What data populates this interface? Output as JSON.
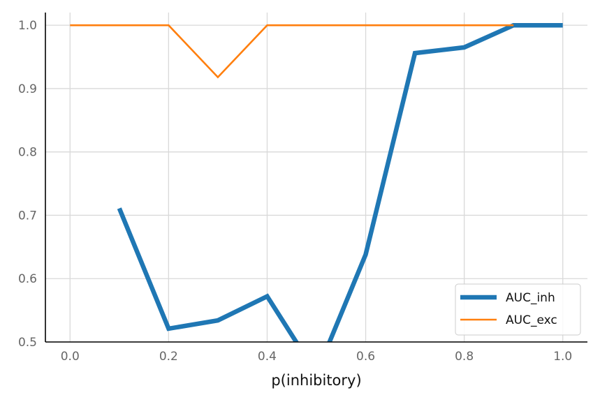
{
  "chart_data": {
    "type": "line",
    "xlabel": "p(inhibitory)",
    "ylabel": "",
    "xlim": [
      -0.05,
      1.05
    ],
    "ylim": [
      0.5,
      1.02
    ],
    "x_ticks": [
      "0.0",
      "0.2",
      "0.4",
      "0.6",
      "0.8",
      "1.0"
    ],
    "y_ticks": [
      "0.5",
      "0.6",
      "0.7",
      "0.8",
      "0.9",
      "1.0"
    ],
    "grid": true,
    "legend_position": "lower-right",
    "series": [
      {
        "name": "AUC_inh",
        "color": "#1f77b4",
        "x": [
          0.1,
          0.2,
          0.3,
          0.4,
          0.5,
          0.6,
          0.7,
          0.8,
          0.9,
          1.0
        ],
        "y": [
          0.711,
          0.521,
          0.534,
          0.572,
          0.45,
          0.638,
          0.956,
          0.965,
          1.0,
          1.0
        ]
      },
      {
        "name": "AUC_exc",
        "color": "#ff7f0e",
        "x": [
          0.0,
          0.1,
          0.2,
          0.3,
          0.4,
          0.5,
          0.6,
          0.7,
          0.8,
          0.9
        ],
        "y": [
          1.0,
          1.0,
          1.0,
          0.918,
          1.0,
          1.0,
          1.0,
          1.0,
          1.0,
          1.0
        ]
      }
    ]
  }
}
